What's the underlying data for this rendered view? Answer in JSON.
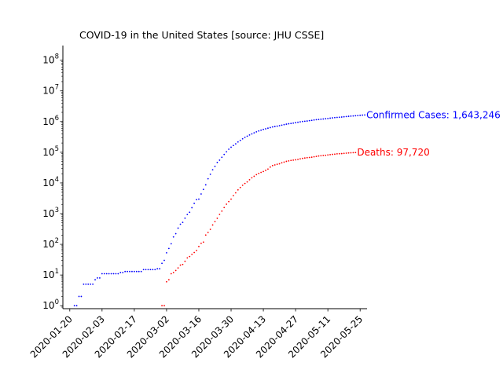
{
  "chart_data": {
    "type": "scatter",
    "title": "COVID-19 in the United States [source: JHU CSSE]",
    "xlabel": "",
    "ylabel": "",
    "yscale": "log",
    "grid": false,
    "legend": "none",
    "x_start_date": "2020-01-22",
    "x_end_date": "2020-05-24",
    "xlim": [
      "2020-01-17",
      "2020-05-28"
    ],
    "ylim": [
      0.8,
      300000000
    ],
    "x_ticks": [
      "2020-01-20",
      "2020-02-03",
      "2020-02-17",
      "2020-03-02",
      "2020-03-16",
      "2020-03-30",
      "2020-04-13",
      "2020-04-27",
      "2020-05-11",
      "2020-05-25"
    ],
    "y_ticks": [
      1,
      10,
      100,
      1000,
      10000,
      100000,
      1000000,
      10000000,
      100000000
    ],
    "y_tick_labels": [
      {
        "base": "10",
        "exp": "0"
      },
      {
        "base": "10",
        "exp": "1"
      },
      {
        "base": "10",
        "exp": "2"
      },
      {
        "base": "10",
        "exp": "3"
      },
      {
        "base": "10",
        "exp": "4"
      },
      {
        "base": "10",
        "exp": "5"
      },
      {
        "base": "10",
        "exp": "6"
      },
      {
        "base": "10",
        "exp": "7"
      },
      {
        "base": "10",
        "exp": "8"
      }
    ],
    "series": [
      {
        "color": "#0000ff",
        "values": [
          1,
          1,
          2,
          2,
          5,
          5,
          5,
          5,
          5,
          7,
          8,
          8,
          11,
          11,
          11,
          11,
          11,
          11,
          11,
          11,
          12,
          12,
          13,
          13,
          13,
          13,
          13,
          13,
          13,
          13,
          15,
          15,
          15,
          15,
          15,
          15,
          16,
          16,
          24,
          30,
          53,
          73,
          104,
          174,
          222,
          337,
          451,
          519,
          711,
          938,
          1109,
          1561,
          2157,
          2870,
          2968,
          4360,
          6141,
          8683,
          13681,
          19197,
          26892,
          34726,
          46540,
          55235,
          68541,
          84812,
          103776,
          125294,
          145862,
          165835,
          188399,
          216077,
          243443,
          273808,
          305820,
          334467,
          365338,
          395618,
          429081,
          461437,
          494423,
          524083,
          553767,
          579271,
          609016,
          636674,
          666964,
          690436,
          709578,
          736458,
          764307,
          793755,
          823653,
          848714,
          866902,
          890001,
          920057,
          947993,
          979000,
          1005015,
          1025592,
          1042864,
          1069119,
          1095122,
          1123207,
          1152471,
          1172092,
          1191536,
          1212873,
          1237229,
          1261335,
          1290297,
          1319439,
          1345286,
          1364616,
          1382989,
          1402735,
          1431281,
          1458243,
          1484704,
          1507838,
          1526963,
          1549841,
          1573780,
          1598207,
          1621817,
          1643246
        ]
      },
      {
        "color": "#ff0000",
        "values": [
          null,
          null,
          null,
          null,
          null,
          null,
          null,
          null,
          null,
          null,
          null,
          null,
          null,
          null,
          null,
          null,
          null,
          null,
          null,
          null,
          null,
          null,
          null,
          null,
          null,
          null,
          null,
          null,
          null,
          null,
          null,
          null,
          null,
          null,
          null,
          null,
          null,
          null,
          1,
          1,
          6,
          7,
          11,
          12,
          14,
          17,
          21,
          22,
          28,
          36,
          40,
          47,
          54,
          63,
          85,
          108,
          118,
          200,
          244,
          307,
          427,
          551,
          705,
          941,
          1208,
          1578,
          2026,
          2467,
          2978,
          3873,
          4757,
          5926,
          7087,
          8407,
          9619,
          10783,
          12722,
          14695,
          16478,
          18586,
          20463,
          22020,
          23529,
          25832,
          28325,
          32916,
          36773,
          38664,
          40661,
          42094,
          45318,
          47659,
          50492,
          52191,
          54265,
          55412,
          56803,
          58355,
          60966,
          62996,
          64943,
          66369,
          67682,
          68922,
          71064,
          73431,
          75662,
          77180,
          78795,
          79526,
          81795,
          83425,
          85197,
          86912,
          88754,
          89562,
          90347,
          91921,
          93439,
          94702,
          96007,
          97087,
          97720
        ]
      }
    ],
    "annotations": [
      {
        "text": "Confirmed Cases: 1,643,246",
        "color": "#0000ff",
        "value": 1643246
      },
      {
        "text": "Deaths: 97,720",
        "color": "#ff0000",
        "value": 97720
      }
    ]
  }
}
